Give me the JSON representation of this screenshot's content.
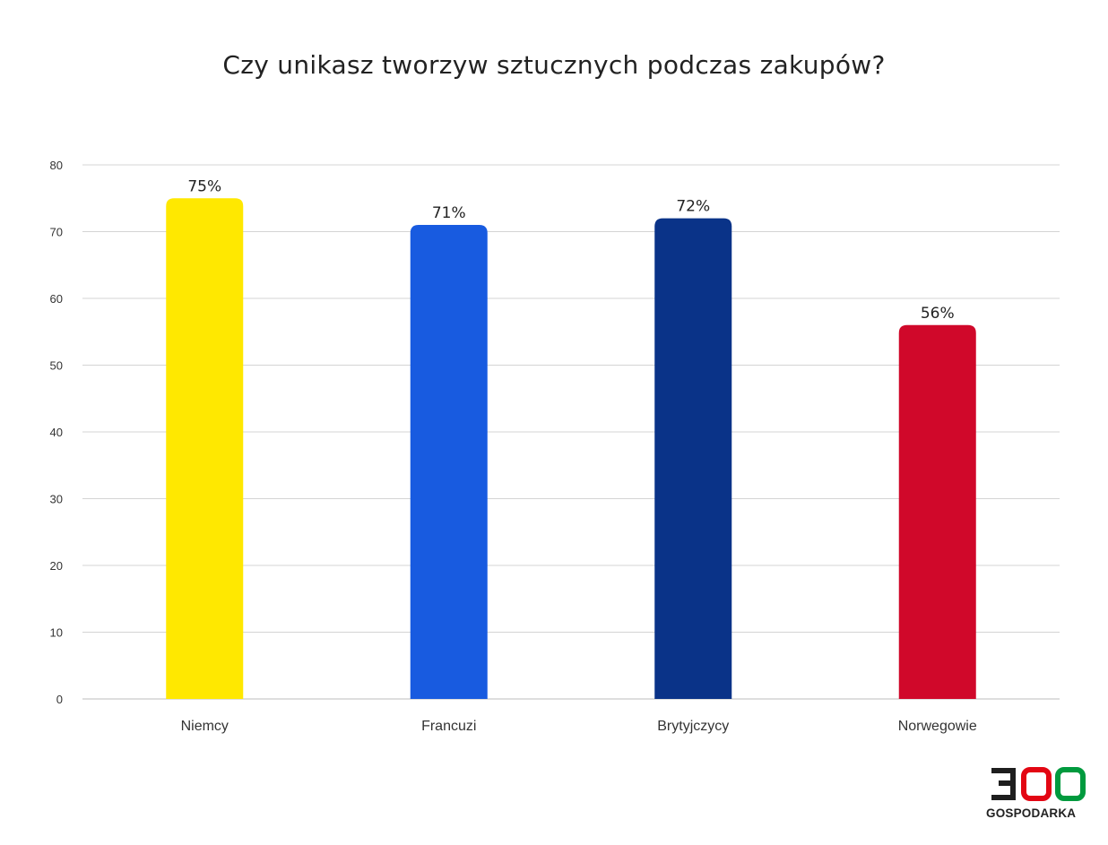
{
  "chart_data": {
    "type": "bar",
    "title": "Czy unikasz tworzyw sztucznych podczas zakupów?",
    "categories": [
      "Niemcy",
      "Francuzi",
      "Brytyjczycy",
      "Norwegowie"
    ],
    "values": [
      75,
      71,
      72,
      56
    ],
    "data_labels": [
      "75%",
      "71%",
      "72%",
      "56%"
    ],
    "colors": [
      "#FFE800",
      "#185BE0",
      "#0A3388",
      "#D0082A"
    ],
    "ylim": [
      0,
      80
    ],
    "yticks": [
      0,
      10,
      20,
      30,
      40,
      50,
      60,
      70,
      80
    ],
    "grid": true,
    "legend": "none"
  },
  "logo": {
    "number": "300",
    "text": "GOSPODARKA",
    "colors": {
      "three": "#1E1E1E",
      "zero1": "#E30613",
      "zero2": "#009A3E"
    }
  }
}
